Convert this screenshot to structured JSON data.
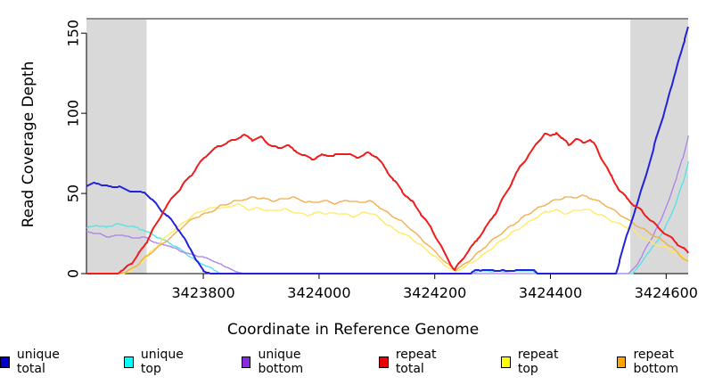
{
  "chart_data": {
    "type": "line",
    "title": "",
    "xlabel": "Coordinate in Reference Genome",
    "ylabel": "Read Coverage Depth",
    "xlim": [
      3423598,
      3424638
    ],
    "ylim": [
      0,
      159
    ],
    "xticks": [
      3423800,
      3424000,
      3424200,
      3424400,
      3424600
    ],
    "yticks": [
      0,
      50,
      100,
      150
    ],
    "grid": false,
    "legend_position": "bottom",
    "background_color": "#ffffff",
    "shaded_region_color": "#d9d9d9",
    "top_rule_color": "#8c8c8c",
    "axis_color": "#000000",
    "shaded_regions": [
      {
        "x0": 3423598,
        "x1": 3423702
      },
      {
        "x0": 3424538,
        "x1": 3424638
      }
    ],
    "top_rule_y": 159,
    "draw_order": [
      1,
      2,
      4,
      5,
      0,
      3
    ],
    "series": [
      {
        "name": "unique total",
        "legend_color": "#0000cc",
        "line_color": "#2222dd",
        "line_width": 2,
        "noise": 0.7,
        "points": [
          [
            3423598,
            55
          ],
          [
            3423612,
            56
          ],
          [
            3423628,
            55
          ],
          [
            3423642,
            54
          ],
          [
            3423655,
            55
          ],
          [
            3423668,
            52
          ],
          [
            3423682,
            51
          ],
          [
            3423700,
            50
          ],
          [
            3423712,
            46
          ],
          [
            3423725,
            41
          ],
          [
            3423738,
            36
          ],
          [
            3423752,
            30
          ],
          [
            3423766,
            22
          ],
          [
            3423778,
            15
          ],
          [
            3423790,
            7
          ],
          [
            3423800,
            2
          ],
          [
            3423812,
            0
          ],
          [
            3424262,
            0
          ],
          [
            3424270,
            2
          ],
          [
            3424372,
            2
          ],
          [
            3424378,
            0
          ],
          [
            3424513,
            0
          ],
          [
            3424520,
            8
          ],
          [
            3424535,
            27
          ],
          [
            3424550,
            44
          ],
          [
            3424565,
            62
          ],
          [
            3424580,
            80
          ],
          [
            3424595,
            98
          ],
          [
            3424610,
            118
          ],
          [
            3424622,
            135
          ],
          [
            3424632,
            146
          ],
          [
            3424638,
            154
          ]
        ]
      },
      {
        "name": "unique top",
        "legend_color": "#00ffff",
        "line_color": "#4fe3e8",
        "line_width": 1.3,
        "noise": 0.5,
        "points": [
          [
            3423598,
            28
          ],
          [
            3423615,
            30
          ],
          [
            3423632,
            29
          ],
          [
            3423650,
            31
          ],
          [
            3423665,
            30
          ],
          [
            3423680,
            29
          ],
          [
            3423698,
            27
          ],
          [
            3423715,
            24
          ],
          [
            3423732,
            21
          ],
          [
            3423750,
            17
          ],
          [
            3423768,
            13
          ],
          [
            3423785,
            9
          ],
          [
            3423800,
            6
          ],
          [
            3423815,
            3
          ],
          [
            3423828,
            0
          ],
          [
            3424266,
            0
          ],
          [
            3424274,
            1.5
          ],
          [
            3424372,
            1.5
          ],
          [
            3424378,
            0
          ],
          [
            3424542,
            0
          ],
          [
            3424555,
            6
          ],
          [
            3424570,
            13
          ],
          [
            3424585,
            21
          ],
          [
            3424600,
            30
          ],
          [
            3424615,
            42
          ],
          [
            3424628,
            56
          ],
          [
            3424638,
            70
          ]
        ]
      },
      {
        "name": "unique bottom",
        "legend_color": "#8a2be2",
        "line_color": "#ab82e8",
        "line_width": 1.3,
        "noise": 0.4,
        "points": [
          [
            3423598,
            26
          ],
          [
            3423618,
            25
          ],
          [
            3423638,
            23
          ],
          [
            3423658,
            24
          ],
          [
            3423678,
            22
          ],
          [
            3423700,
            23
          ],
          [
            3423720,
            19
          ],
          [
            3423742,
            17
          ],
          [
            3423762,
            14
          ],
          [
            3423782,
            12
          ],
          [
            3423802,
            10
          ],
          [
            3423822,
            7
          ],
          [
            3423842,
            4
          ],
          [
            3423858,
            1
          ],
          [
            3423868,
            0
          ],
          [
            3424535,
            0
          ],
          [
            3424548,
            5
          ],
          [
            3424560,
            12
          ],
          [
            3424575,
            22
          ],
          [
            3424590,
            33
          ],
          [
            3424605,
            47
          ],
          [
            3424618,
            60
          ],
          [
            3424628,
            72
          ],
          [
            3424638,
            86
          ]
        ]
      },
      {
        "name": "repeat total",
        "legend_color": "#ee0000",
        "line_color": "#ee1c1c",
        "line_width": 2,
        "noise": 1.1,
        "points": [
          [
            3423598,
            0
          ],
          [
            3423652,
            0
          ],
          [
            3423662,
            2
          ],
          [
            3423676,
            7
          ],
          [
            3423690,
            14
          ],
          [
            3423705,
            22
          ],
          [
            3423720,
            31
          ],
          [
            3423735,
            41
          ],
          [
            3423750,
            49
          ],
          [
            3423765,
            56
          ],
          [
            3423780,
            62
          ],
          [
            3423795,
            69
          ],
          [
            3423810,
            75
          ],
          [
            3423825,
            79
          ],
          [
            3423840,
            82
          ],
          [
            3423855,
            84
          ],
          [
            3423870,
            86
          ],
          [
            3423885,
            83
          ],
          [
            3423900,
            85
          ],
          [
            3423915,
            81
          ],
          [
            3423930,
            78
          ],
          [
            3423945,
            80
          ],
          [
            3423958,
            76
          ],
          [
            3423972,
            74
          ],
          [
            3423988,
            72
          ],
          [
            3424005,
            74
          ],
          [
            3424025,
            73
          ],
          [
            3424045,
            75
          ],
          [
            3424065,
            73
          ],
          [
            3424085,
            75
          ],
          [
            3424098,
            73
          ],
          [
            3424112,
            66
          ],
          [
            3424128,
            59
          ],
          [
            3424144,
            52
          ],
          [
            3424160,
            45
          ],
          [
            3424176,
            37
          ],
          [
            3424192,
            29
          ],
          [
            3424208,
            19
          ],
          [
            3424222,
            10
          ],
          [
            3424234,
            2
          ],
          [
            3424246,
            8
          ],
          [
            3424260,
            15
          ],
          [
            3424275,
            22
          ],
          [
            3424290,
            30
          ],
          [
            3424305,
            38
          ],
          [
            3424320,
            48
          ],
          [
            3424335,
            58
          ],
          [
            3424350,
            68
          ],
          [
            3424365,
            76
          ],
          [
            3424378,
            82
          ],
          [
            3424390,
            87
          ],
          [
            3424400,
            85
          ],
          [
            3424410,
            88
          ],
          [
            3424420,
            84
          ],
          [
            3424432,
            81
          ],
          [
            3424444,
            84
          ],
          [
            3424456,
            82
          ],
          [
            3424468,
            83
          ],
          [
            3424480,
            78
          ],
          [
            3424492,
            70
          ],
          [
            3424505,
            61
          ],
          [
            3424518,
            53
          ],
          [
            3424532,
            47
          ],
          [
            3424545,
            42
          ],
          [
            3424560,
            38
          ],
          [
            3424575,
            33
          ],
          [
            3424590,
            28
          ],
          [
            3424605,
            23
          ],
          [
            3424620,
            18
          ],
          [
            3424630,
            15
          ],
          [
            3424638,
            13
          ]
        ]
      },
      {
        "name": "repeat top",
        "legend_color": "#ffff00",
        "line_color": "#ffea5e",
        "line_width": 1.3,
        "noise": 0.9,
        "points": [
          [
            3423598,
            0
          ],
          [
            3423662,
            0
          ],
          [
            3423675,
            2
          ],
          [
            3423695,
            8
          ],
          [
            3423712,
            14
          ],
          [
            3423728,
            20
          ],
          [
            3423745,
            26
          ],
          [
            3423762,
            31
          ],
          [
            3423778,
            35
          ],
          [
            3423792,
            38
          ],
          [
            3423806,
            40
          ],
          [
            3423822,
            42
          ],
          [
            3423840,
            41
          ],
          [
            3423858,
            43
          ],
          [
            3423878,
            40
          ],
          [
            3423898,
            41
          ],
          [
            3423918,
            39
          ],
          [
            3423938,
            40
          ],
          [
            3423958,
            38
          ],
          [
            3423978,
            37
          ],
          [
            3423998,
            38
          ],
          [
            3424018,
            37
          ],
          [
            3424038,
            38
          ],
          [
            3424058,
            36
          ],
          [
            3424078,
            38
          ],
          [
            3424094,
            37
          ],
          [
            3424110,
            33
          ],
          [
            3424130,
            28
          ],
          [
            3424150,
            24
          ],
          [
            3424170,
            19
          ],
          [
            3424190,
            14
          ],
          [
            3424210,
            8
          ],
          [
            3424226,
            3
          ],
          [
            3424236,
            1
          ],
          [
            3424252,
            4
          ],
          [
            3424272,
            9
          ],
          [
            3424292,
            14
          ],
          [
            3424312,
            19
          ],
          [
            3424332,
            25
          ],
          [
            3424352,
            30
          ],
          [
            3424372,
            34
          ],
          [
            3424392,
            38
          ],
          [
            3424410,
            40
          ],
          [
            3424422,
            38
          ],
          [
            3424440,
            39
          ],
          [
            3424458,
            40
          ],
          [
            3424476,
            38
          ],
          [
            3424492,
            36
          ],
          [
            3424508,
            33
          ],
          [
            3424524,
            30
          ],
          [
            3424540,
            27
          ],
          [
            3424560,
            23
          ],
          [
            3424580,
            19
          ],
          [
            3424600,
            16
          ],
          [
            3424620,
            12
          ],
          [
            3424638,
            9
          ]
        ]
      },
      {
        "name": "repeat bottom",
        "legend_color": "#ffa500",
        "line_color": "#f3ab45",
        "line_width": 1.3,
        "noise": 0.9,
        "points": [
          [
            3423598,
            0
          ],
          [
            3423658,
            0
          ],
          [
            3423670,
            2
          ],
          [
            3423688,
            6
          ],
          [
            3423708,
            12
          ],
          [
            3423728,
            18
          ],
          [
            3423748,
            24
          ],
          [
            3423768,
            30
          ],
          [
            3423788,
            35
          ],
          [
            3423808,
            38
          ],
          [
            3423828,
            42
          ],
          [
            3423848,
            44
          ],
          [
            3423868,
            46
          ],
          [
            3423888,
            48
          ],
          [
            3423904,
            47
          ],
          [
            3423920,
            45
          ],
          [
            3423938,
            46
          ],
          [
            3423954,
            48
          ],
          [
            3423970,
            46
          ],
          [
            3423988,
            44
          ],
          [
            3424008,
            45
          ],
          [
            3424028,
            44
          ],
          [
            3424048,
            46
          ],
          [
            3424068,
            44
          ],
          [
            3424088,
            45
          ],
          [
            3424104,
            42
          ],
          [
            3424124,
            37
          ],
          [
            3424144,
            32
          ],
          [
            3424164,
            26
          ],
          [
            3424184,
            20
          ],
          [
            3424204,
            13
          ],
          [
            3424220,
            6
          ],
          [
            3424236,
            2
          ],
          [
            3424252,
            6
          ],
          [
            3424272,
            12
          ],
          [
            3424292,
            18
          ],
          [
            3424312,
            24
          ],
          [
            3424332,
            30
          ],
          [
            3424352,
            35
          ],
          [
            3424372,
            39
          ],
          [
            3424392,
            43
          ],
          [
            3424408,
            46
          ],
          [
            3424424,
            48
          ],
          [
            3424440,
            47
          ],
          [
            3424456,
            48
          ],
          [
            3424472,
            47
          ],
          [
            3424486,
            45
          ],
          [
            3424500,
            42
          ],
          [
            3424515,
            38
          ],
          [
            3424530,
            34
          ],
          [
            3424550,
            30
          ],
          [
            3424570,
            26
          ],
          [
            3424590,
            21
          ],
          [
            3424610,
            16
          ],
          [
            3424625,
            11
          ],
          [
            3424638,
            8
          ]
        ]
      }
    ]
  }
}
